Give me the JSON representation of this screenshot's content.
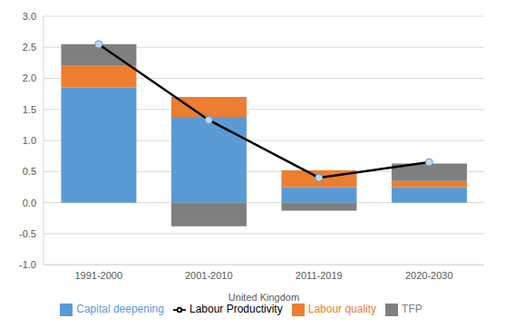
{
  "chart_data": {
    "type": "bar",
    "stacked": true,
    "categories": [
      "1991-2000",
      "2001-2010",
      "2011-2019",
      "2020-2030"
    ],
    "x_label": "United Kingdom",
    "series": [
      {
        "name": "Capital deepening",
        "color": "#5b9bd5",
        "values": [
          1.85,
          1.38,
          0.25,
          0.25
        ]
      },
      {
        "name": "Labour quality",
        "color": "#ed7d31",
        "values": [
          0.35,
          0.32,
          0.27,
          0.1
        ]
      },
      {
        "name": "TFP",
        "color": "#7f7f7f",
        "values": [
          0.35,
          -0.38,
          -0.13,
          0.28
        ]
      },
      {
        "name": "Labour Productivity",
        "type": "line",
        "color": "#000000",
        "marker": "circle",
        "values": [
          2.55,
          1.33,
          0.4,
          0.65
        ]
      }
    ],
    "ylim": [
      -1,
      3
    ],
    "yticks": [
      {
        "value": -1,
        "label": "-1.0"
      },
      {
        "value": -0.5,
        "label": "-0.5"
      },
      {
        "value": 0,
        "label": "0.0"
      },
      {
        "value": 0.5,
        "label": "0.5"
      },
      {
        "value": 1,
        "label": "1.0"
      },
      {
        "value": 1.5,
        "label": "1.5"
      },
      {
        "value": 2,
        "label": "2.0"
      },
      {
        "value": 2.5,
        "label": "2.5"
      },
      {
        "value": 3,
        "label": "3.0"
      }
    ],
    "grid": true,
    "legend": "bottom"
  }
}
